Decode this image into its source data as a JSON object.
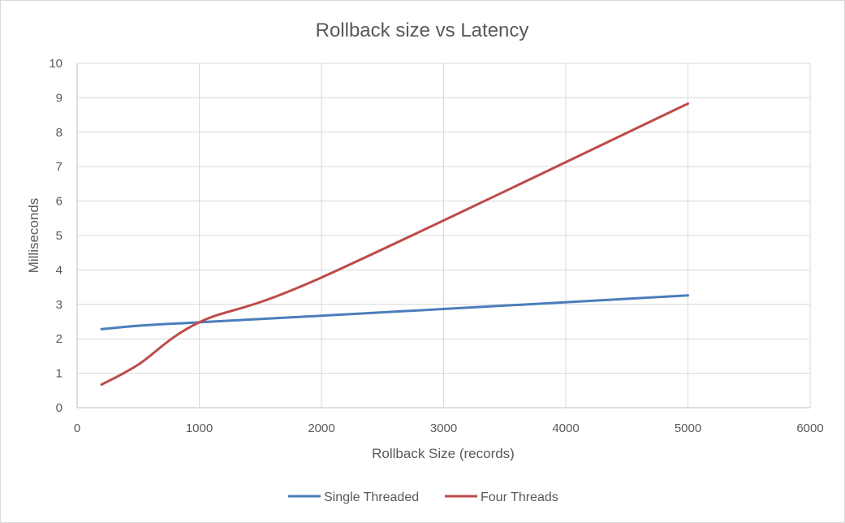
{
  "chart_data": {
    "type": "line",
    "title": "Rollback size vs Latency",
    "xlabel": "Rollback Size (records)",
    "ylabel": "Milliseconds",
    "xlim": [
      0,
      6000
    ],
    "ylim": [
      0,
      10
    ],
    "x_ticks": [
      0,
      1000,
      2000,
      3000,
      4000,
      5000,
      6000
    ],
    "y_ticks": [
      0,
      1,
      2,
      3,
      4,
      5,
      6,
      7,
      8,
      9,
      10
    ],
    "grid": true,
    "legend_position": "bottom",
    "series": [
      {
        "name": "Single Threaded",
        "color": "#4a7ebb",
        "x": [
          200,
          500,
          1000,
          2000,
          5000
        ],
        "values": [
          2.28,
          2.38,
          2.48,
          2.67,
          3.26
        ]
      },
      {
        "name": "Four Threads",
        "color": "#be4b48",
        "x": [
          200,
          500,
          1000,
          2000,
          5000
        ],
        "values": [
          0.67,
          1.25,
          2.48,
          3.78,
          8.83
        ]
      }
    ]
  }
}
